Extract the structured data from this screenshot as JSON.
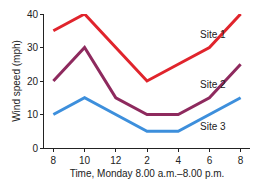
{
  "chart_data": {
    "type": "line",
    "x_label": "Time, Monday 8.00 a.m.–8.00 p.m.",
    "y_label": "Wind speed (mph)",
    "categories": [
      "8",
      "10",
      "12",
      "2",
      "4",
      "6",
      "8"
    ],
    "series": [
      {
        "name": "Site 1",
        "color": "#e0242c",
        "values": [
          35,
          40,
          30,
          20,
          25,
          30,
          40
        ]
      },
      {
        "name": "Site 2",
        "color": "#8e2a5e",
        "values": [
          20,
          30,
          15,
          10,
          10,
          15,
          25
        ]
      },
      {
        "name": "Site 3",
        "color": "#3d8fdc",
        "values": [
          10,
          15,
          10,
          5,
          5,
          10,
          15
        ]
      }
    ],
    "ylim": [
      0,
      40
    ],
    "yticks": [
      0,
      10,
      20,
      30,
      40
    ],
    "grid": false
  }
}
